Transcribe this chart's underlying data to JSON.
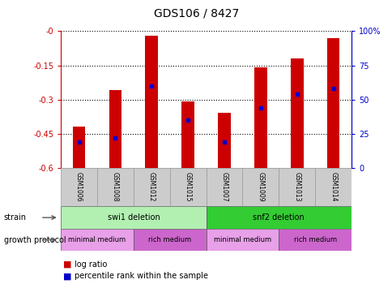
{
  "title": "GDS106 / 8427",
  "samples": [
    "GSM1006",
    "GSM1008",
    "GSM1012",
    "GSM1015",
    "GSM1007",
    "GSM1009",
    "GSM1013",
    "GSM1014"
  ],
  "log_ratios": [
    -0.42,
    -0.26,
    -0.02,
    -0.31,
    -0.36,
    -0.16,
    -0.12,
    -0.03
  ],
  "percentile_ranks": [
    19,
    22,
    60,
    35,
    19,
    44,
    54,
    58
  ],
  "ylim_left": [
    -0.6,
    0.0
  ],
  "ylim_right": [
    0,
    100
  ],
  "yticks_left": [
    0.0,
    -0.15,
    -0.3,
    -0.45,
    -0.6
  ],
  "yticks_right": [
    100,
    75,
    50,
    25,
    0
  ],
  "ytick_labels_left": [
    "-0",
    "-0.15",
    "-0.3",
    "-0.45",
    "-0.6"
  ],
  "ytick_labels_right": [
    "100%",
    "75",
    "50",
    "25",
    "0"
  ],
  "strain_groups": [
    {
      "label": "swi1 deletion",
      "start": 0,
      "end": 4,
      "color": "#b2f0b2"
    },
    {
      "label": "snf2 deletion",
      "start": 4,
      "end": 8,
      "color": "#33cc33"
    }
  ],
  "growth_groups": [
    {
      "label": "minimal medium",
      "start": 0,
      "end": 2,
      "color": "#e8a0e8"
    },
    {
      "label": "rich medium",
      "start": 2,
      "end": 4,
      "color": "#cc66cc"
    },
    {
      "label": "minimal medium",
      "start": 4,
      "end": 6,
      "color": "#e8a0e8"
    },
    {
      "label": "rich medium",
      "start": 6,
      "end": 8,
      "color": "#cc66cc"
    }
  ],
  "bar_color": "#cc0000",
  "dot_color": "#0000cc",
  "grid_linestyle": ":",
  "grid_linewidth": 0.8,
  "left_label_color": "#cc0000",
  "right_label_color": "#0000cc",
  "bar_width": 0.35,
  "tick_fontsize": 7,
  "title_fontsize": 10,
  "sample_fontsize": 5.5,
  "annotation_fontsize": 7,
  "legend_fontsize": 7
}
